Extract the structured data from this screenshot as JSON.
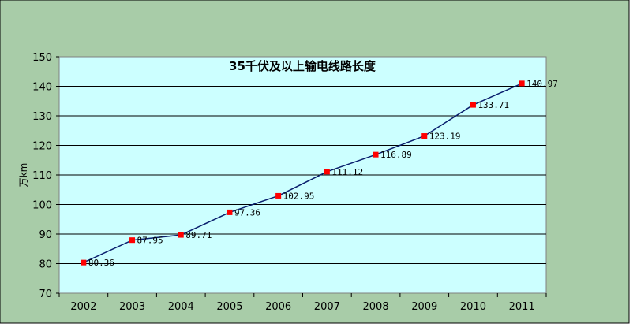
{
  "chart_data": {
    "type": "line",
    "title": "35千伏及以上输电线路长度",
    "xlabel": "",
    "ylabel": "万km",
    "categories": [
      "2002",
      "2003",
      "2004",
      "2005",
      "2006",
      "2007",
      "2008",
      "2009",
      "2010",
      "2011"
    ],
    "values": [
      80.36,
      87.95,
      89.71,
      97.36,
      102.95,
      111.12,
      116.89,
      123.19,
      133.71,
      140.97
    ],
    "data_labels": [
      "80.36",
      "87.95",
      "89.71",
      "97.36",
      "102.95",
      "111.12",
      "116.89",
      "123.19",
      "133.71",
      "140.97"
    ],
    "ylim": [
      70,
      150
    ],
    "yticks": [
      "70",
      "80",
      "90",
      "100",
      "110",
      "120",
      "130",
      "140",
      "150"
    ],
    "grid": true,
    "legend": "none",
    "colors": {
      "line": "#0a1f6e",
      "marker": "#ff0000",
      "plot_bg": "#ccffff",
      "frame_bg": "#a8cca8"
    }
  }
}
